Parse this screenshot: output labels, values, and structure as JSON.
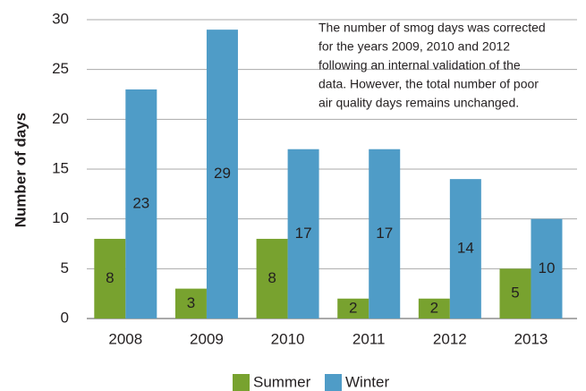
{
  "chart_data": {
    "type": "bar",
    "ylabel": "Number of days",
    "annotation": [
      "The number of smog days was corrected",
      "for the years 2009, 2010 and 2012",
      "following an internal validation of the",
      "data. However, the total number of poor",
      "air quality days remains unchanged."
    ],
    "categories": [
      "2008",
      "2009",
      "2010",
      "2011",
      "2012",
      "2013"
    ],
    "series": [
      {
        "name": "Summer",
        "color": "#78a22f",
        "values": [
          8,
          3,
          8,
          2,
          2,
          5
        ]
      },
      {
        "name": "Winter",
        "color": "#4f9cc7",
        "values": [
          23,
          29,
          17,
          17,
          14,
          10
        ]
      }
    ],
    "ylim": [
      0,
      30
    ],
    "yticks": [
      0,
      5,
      10,
      15,
      20,
      25,
      30
    ],
    "grid": true,
    "legend": "bottom"
  }
}
